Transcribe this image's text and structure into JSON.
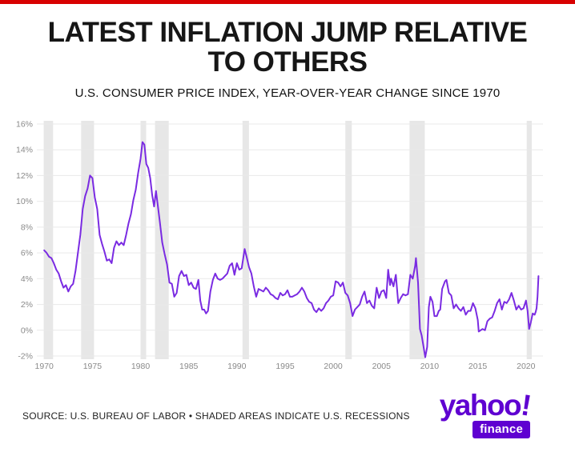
{
  "accent": {
    "top_bar_color": "#d80000"
  },
  "footer": {
    "source_note": "SOURCE: U.S. BUREAU OF LABOR • SHADED AREAS INDICATE U.S. RECESSIONS"
  },
  "brand": {
    "logo_text": "yahoo",
    "logo_exclaim": "!",
    "logo_sub": "finance",
    "brand_color": "#5f01d1"
  },
  "chart_data": {
    "type": "line",
    "title": "LATEST INFLATION JUMP RELATIVE TO OTHERS",
    "title_lines": [
      "LATEST INFLATION JUMP RELATIVE",
      "TO OTHERS"
    ],
    "subtitle": "U.S. CONSUMER PRICE INDEX, YEAR-OVER-YEAR CHANGE SINCE 1970",
    "xlabel": "",
    "ylabel": "",
    "x_ticks": [
      1970,
      1975,
      1980,
      1985,
      1990,
      1995,
      2000,
      2005,
      2010,
      2015,
      2020
    ],
    "y_ticks": [
      16,
      14,
      12,
      10,
      8,
      6,
      4,
      2,
      0,
      -2
    ],
    "y_tick_suffix": "%",
    "xlim": [
      1969.4,
      2021.6
    ],
    "ylim": [
      -2,
      16
    ],
    "grid": true,
    "legend": "none",
    "line_color": "#7a2be2",
    "recession_color": "#e7e7e7",
    "grid_color": "#e9e9e9",
    "axis_label_color": "#8a8a8a",
    "recessions": [
      [
        1969.95,
        1970.92
      ],
      [
        1973.83,
        1975.17
      ],
      [
        1980.0,
        1980.58
      ],
      [
        1981.5,
        1982.92
      ],
      [
        1990.58,
        1991.25
      ],
      [
        2001.25,
        2001.92
      ],
      [
        2007.92,
        2009.5
      ],
      [
        2020.08,
        2020.6
      ]
    ],
    "series": [
      {
        "name": "U.S. CPI year-over-year % change",
        "points": [
          [
            1970.0,
            6.2
          ],
          [
            1970.25,
            6.0
          ],
          [
            1970.5,
            5.7
          ],
          [
            1970.75,
            5.6
          ],
          [
            1971.0,
            5.2
          ],
          [
            1971.25,
            4.7
          ],
          [
            1971.5,
            4.4
          ],
          [
            1971.75,
            3.8
          ],
          [
            1972.0,
            3.3
          ],
          [
            1972.25,
            3.5
          ],
          [
            1972.5,
            3.0
          ],
          [
            1972.75,
            3.4
          ],
          [
            1973.0,
            3.6
          ],
          [
            1973.25,
            4.6
          ],
          [
            1973.5,
            6.0
          ],
          [
            1973.75,
            7.4
          ],
          [
            1974.0,
            9.4
          ],
          [
            1974.25,
            10.4
          ],
          [
            1974.5,
            11.0
          ],
          [
            1974.75,
            12.0
          ],
          [
            1975.0,
            11.8
          ],
          [
            1975.25,
            10.3
          ],
          [
            1975.5,
            9.4
          ],
          [
            1975.75,
            7.4
          ],
          [
            1976.0,
            6.7
          ],
          [
            1976.25,
            6.1
          ],
          [
            1976.5,
            5.4
          ],
          [
            1976.75,
            5.5
          ],
          [
            1977.0,
            5.2
          ],
          [
            1977.25,
            6.4
          ],
          [
            1977.5,
            6.9
          ],
          [
            1977.75,
            6.6
          ],
          [
            1978.0,
            6.8
          ],
          [
            1978.25,
            6.6
          ],
          [
            1978.5,
            7.4
          ],
          [
            1978.75,
            8.3
          ],
          [
            1979.0,
            9.0
          ],
          [
            1979.25,
            10.1
          ],
          [
            1979.5,
            10.9
          ],
          [
            1979.75,
            12.2
          ],
          [
            1980.0,
            13.3
          ],
          [
            1980.2,
            14.6
          ],
          [
            1980.4,
            14.4
          ],
          [
            1980.6,
            12.9
          ],
          [
            1980.8,
            12.6
          ],
          [
            1981.0,
            11.8
          ],
          [
            1981.2,
            10.5
          ],
          [
            1981.4,
            9.6
          ],
          [
            1981.6,
            10.8
          ],
          [
            1981.8,
            9.6
          ],
          [
            1982.0,
            8.4
          ],
          [
            1982.25,
            6.8
          ],
          [
            1982.5,
            5.9
          ],
          [
            1982.75,
            5.1
          ],
          [
            1983.0,
            3.7
          ],
          [
            1983.25,
            3.6
          ],
          [
            1983.5,
            2.6
          ],
          [
            1983.75,
            2.9
          ],
          [
            1984.0,
            4.2
          ],
          [
            1984.25,
            4.6
          ],
          [
            1984.5,
            4.2
          ],
          [
            1984.75,
            4.3
          ],
          [
            1985.0,
            3.5
          ],
          [
            1985.25,
            3.7
          ],
          [
            1985.5,
            3.3
          ],
          [
            1985.75,
            3.2
          ],
          [
            1986.0,
            3.9
          ],
          [
            1986.2,
            2.3
          ],
          [
            1986.4,
            1.6
          ],
          [
            1986.6,
            1.6
          ],
          [
            1986.8,
            1.3
          ],
          [
            1987.0,
            1.5
          ],
          [
            1987.25,
            3.0
          ],
          [
            1987.5,
            3.9
          ],
          [
            1987.75,
            4.4
          ],
          [
            1988.0,
            4.0
          ],
          [
            1988.25,
            3.9
          ],
          [
            1988.5,
            4.0
          ],
          [
            1988.75,
            4.2
          ],
          [
            1989.0,
            4.4
          ],
          [
            1989.25,
            5.0
          ],
          [
            1989.5,
            5.2
          ],
          [
            1989.75,
            4.3
          ],
          [
            1990.0,
            5.2
          ],
          [
            1990.25,
            4.7
          ],
          [
            1990.5,
            4.8
          ],
          [
            1990.8,
            6.3
          ],
          [
            1991.0,
            5.7
          ],
          [
            1991.25,
            4.9
          ],
          [
            1991.5,
            4.4
          ],
          [
            1991.75,
            3.4
          ],
          [
            1992.0,
            2.6
          ],
          [
            1992.25,
            3.2
          ],
          [
            1992.5,
            3.1
          ],
          [
            1992.75,
            3.0
          ],
          [
            1993.0,
            3.3
          ],
          [
            1993.25,
            3.1
          ],
          [
            1993.5,
            2.8
          ],
          [
            1993.75,
            2.7
          ],
          [
            1994.0,
            2.5
          ],
          [
            1994.25,
            2.4
          ],
          [
            1994.5,
            2.9
          ],
          [
            1994.75,
            2.7
          ],
          [
            1995.0,
            2.8
          ],
          [
            1995.25,
            3.1
          ],
          [
            1995.5,
            2.6
          ],
          [
            1995.75,
            2.6
          ],
          [
            1996.0,
            2.7
          ],
          [
            1996.25,
            2.8
          ],
          [
            1996.5,
            3.0
          ],
          [
            1996.75,
            3.3
          ],
          [
            1997.0,
            3.0
          ],
          [
            1997.25,
            2.5
          ],
          [
            1997.5,
            2.2
          ],
          [
            1997.75,
            2.1
          ],
          [
            1998.0,
            1.6
          ],
          [
            1998.25,
            1.4
          ],
          [
            1998.5,
            1.7
          ],
          [
            1998.75,
            1.5
          ],
          [
            1999.0,
            1.7
          ],
          [
            1999.25,
            2.1
          ],
          [
            1999.5,
            2.3
          ],
          [
            1999.75,
            2.6
          ],
          [
            2000.0,
            2.7
          ],
          [
            2000.25,
            3.8
          ],
          [
            2000.5,
            3.7
          ],
          [
            2000.75,
            3.4
          ],
          [
            2001.0,
            3.7
          ],
          [
            2001.25,
            2.9
          ],
          [
            2001.5,
            2.7
          ],
          [
            2001.75,
            2.1
          ],
          [
            2002.0,
            1.1
          ],
          [
            2002.25,
            1.6
          ],
          [
            2002.5,
            1.8
          ],
          [
            2002.75,
            2.0
          ],
          [
            2003.0,
            2.6
          ],
          [
            2003.25,
            3.0
          ],
          [
            2003.5,
            2.1
          ],
          [
            2003.75,
            2.3
          ],
          [
            2004.0,
            1.9
          ],
          [
            2004.25,
            1.7
          ],
          [
            2004.5,
            3.3
          ],
          [
            2004.75,
            2.5
          ],
          [
            2005.0,
            3.0
          ],
          [
            2005.25,
            3.1
          ],
          [
            2005.5,
            2.5
          ],
          [
            2005.7,
            4.7
          ],
          [
            2005.9,
            3.5
          ],
          [
            2006.0,
            4.0
          ],
          [
            2006.25,
            3.4
          ],
          [
            2006.5,
            4.3
          ],
          [
            2006.75,
            2.1
          ],
          [
            2007.0,
            2.5
          ],
          [
            2007.25,
            2.8
          ],
          [
            2007.5,
            2.7
          ],
          [
            2007.75,
            2.8
          ],
          [
            2008.0,
            4.3
          ],
          [
            2008.25,
            4.0
          ],
          [
            2008.5,
            5.0
          ],
          [
            2008.58,
            5.6
          ],
          [
            2008.8,
            3.7
          ],
          [
            2009.0,
            0.1
          ],
          [
            2009.17,
            -0.4
          ],
          [
            2009.4,
            -1.4
          ],
          [
            2009.55,
            -2.1
          ],
          [
            2009.75,
            -1.3
          ],
          [
            2009.92,
            1.8
          ],
          [
            2010.08,
            2.6
          ],
          [
            2010.3,
            2.2
          ],
          [
            2010.5,
            1.1
          ],
          [
            2010.75,
            1.1
          ],
          [
            2010.95,
            1.5
          ],
          [
            2011.1,
            1.6
          ],
          [
            2011.3,
            3.2
          ],
          [
            2011.6,
            3.8
          ],
          [
            2011.75,
            3.9
          ],
          [
            2012.0,
            2.9
          ],
          [
            2012.25,
            2.7
          ],
          [
            2012.5,
            1.7
          ],
          [
            2012.75,
            2.0
          ],
          [
            2013.0,
            1.7
          ],
          [
            2013.25,
            1.5
          ],
          [
            2013.5,
            1.8
          ],
          [
            2013.75,
            1.2
          ],
          [
            2014.0,
            1.5
          ],
          [
            2014.25,
            1.5
          ],
          [
            2014.5,
            2.1
          ],
          [
            2014.75,
            1.7
          ],
          [
            2015.0,
            0.8
          ],
          [
            2015.1,
            -0.1
          ],
          [
            2015.3,
            0.0
          ],
          [
            2015.5,
            0.1
          ],
          [
            2015.75,
            0.0
          ],
          [
            2016.0,
            0.7
          ],
          [
            2016.25,
            0.9
          ],
          [
            2016.5,
            1.0
          ],
          [
            2016.75,
            1.5
          ],
          [
            2017.0,
            2.1
          ],
          [
            2017.25,
            2.4
          ],
          [
            2017.5,
            1.6
          ],
          [
            2017.75,
            2.2
          ],
          [
            2018.0,
            2.1
          ],
          [
            2018.25,
            2.4
          ],
          [
            2018.5,
            2.9
          ],
          [
            2018.75,
            2.3
          ],
          [
            2019.0,
            1.6
          ],
          [
            2019.25,
            1.9
          ],
          [
            2019.5,
            1.6
          ],
          [
            2019.75,
            1.7
          ],
          [
            2020.0,
            2.3
          ],
          [
            2020.17,
            1.5
          ],
          [
            2020.33,
            0.1
          ],
          [
            2020.5,
            0.6
          ],
          [
            2020.7,
            1.3
          ],
          [
            2020.9,
            1.2
          ],
          [
            2021.0,
            1.4
          ],
          [
            2021.1,
            1.7
          ],
          [
            2021.2,
            2.6
          ],
          [
            2021.3,
            4.2
          ]
        ]
      }
    ]
  }
}
